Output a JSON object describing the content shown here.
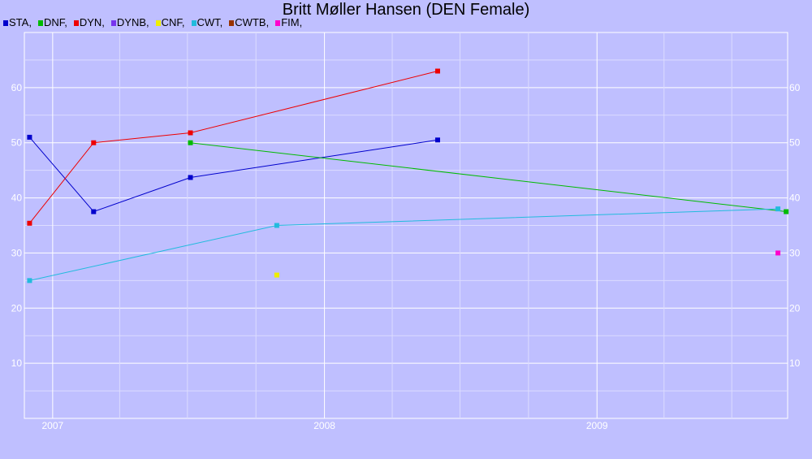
{
  "chart_data": {
    "type": "line",
    "title": "Britt Møller Hansen (DEN Female)",
    "xlabel": "",
    "ylabel": "",
    "x_ticks": [
      "2007",
      "2008",
      "2009"
    ],
    "y_ticks": [
      10,
      20,
      30,
      40,
      50,
      60
    ],
    "ylim": [
      0,
      70
    ],
    "xlim": [
      "2006-11-24",
      "2009-09-14"
    ],
    "grid": true,
    "legend_position": "top-left",
    "series": [
      {
        "name": "STA,",
        "color": "#0000cc",
        "points": [
          [
            "2006-12-01",
            51
          ],
          [
            "2007-02-25",
            37.5
          ],
          [
            "2007-07-05",
            43.7
          ],
          [
            "2008-06-01",
            50.5
          ]
        ]
      },
      {
        "name": "DNF,",
        "color": "#00bb00",
        "points": [
          [
            "2007-07-05",
            50
          ],
          [
            "2009-09-12",
            37.5
          ]
        ]
      },
      {
        "name": "DYN,",
        "color": "#ee0000",
        "points": [
          [
            "2006-12-01",
            35.4
          ],
          [
            "2007-02-25",
            50
          ],
          [
            "2007-07-05",
            51.8
          ],
          [
            "2008-06-01",
            63
          ]
        ]
      },
      {
        "name": "DYNB,",
        "color": "#7733ee",
        "points": []
      },
      {
        "name": "CNF,",
        "color": "#eeee00",
        "points": [
          [
            "2007-10-29",
            26
          ]
        ]
      },
      {
        "name": "CWT,",
        "color": "#22bbdd",
        "points": [
          [
            "2006-12-01",
            25
          ],
          [
            "2007-10-29",
            35
          ],
          [
            "2009-09-01",
            38
          ]
        ]
      },
      {
        "name": "CWTB,",
        "color": "#993300",
        "points": []
      },
      {
        "name": "FIM,",
        "color": "#ff00cc",
        "points": [
          [
            "2009-09-01",
            30
          ]
        ]
      }
    ]
  }
}
